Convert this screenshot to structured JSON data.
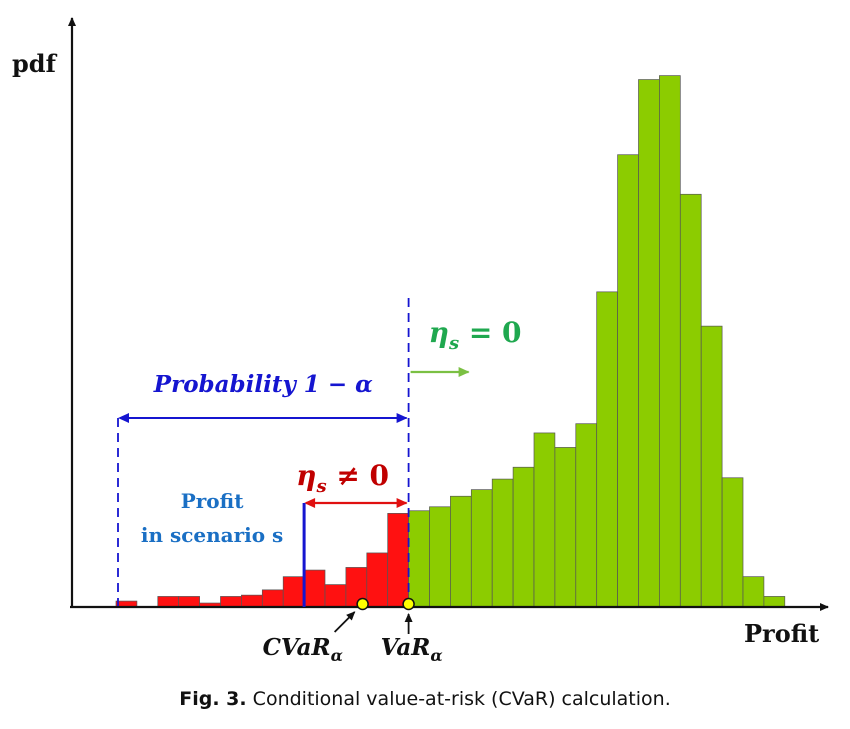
{
  "chart_data": {
    "type": "bar",
    "xlabel": "Profit",
    "ylabel": "pdf",
    "bars_tail": [
      0.9,
      0,
      1.6,
      1.6,
      0.6,
      1.6,
      1.8,
      2.6,
      4.6,
      5.6,
      3.4,
      6.0,
      8.2,
      14.2
    ],
    "bars_body": [
      14.6,
      15.2,
      16.8,
      17.8,
      19.4,
      21.2,
      26.4,
      24.2,
      27.8,
      47.8,
      68.6,
      80.0,
      80.6,
      62.6,
      42.6,
      19.6,
      4.6,
      1.6
    ],
    "ylim": [
      0,
      86
    ],
    "scenario_profit_bin": 9.0,
    "cvar_bin": 11.8,
    "var_bin": 14.0,
    "prob_left_bin": 0.0
  },
  "labels": {
    "probability": "Probability 1 − α",
    "eta_nonzero": "η",
    "eta_nonzero_sub": "s",
    "eta_nonzero_rel": " ≠ 0",
    "eta_zero": "η",
    "eta_zero_sub": "s",
    "eta_zero_rel": " = 0",
    "profit_scenario_line1": "Profit",
    "profit_scenario_line2": "in scenario s",
    "cvar": "CVaR",
    "cvar_sub": "α",
    "var": "VaR",
    "var_sub": "α"
  },
  "caption": {
    "fig": "Fig. 3.",
    "text": "Conditional value-at-risk (CVaR) calculation."
  },
  "colors": {
    "tail": "#ff1111",
    "body": "#8ccc00",
    "blue": "#1515d0",
    "scenario_blue": "#1a6fc4",
    "eta_red": "#c00000",
    "eta_green": "#1fa84f",
    "arrow_red": "#e01010",
    "arrow_green": "#7bc043",
    "marker": "#ffff00"
  }
}
